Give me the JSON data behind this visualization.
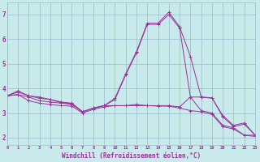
{
  "xlabel": "Windchill (Refroidissement éolien,°C)",
  "background_color": "#c8eaea",
  "grid_color": "#99bbcc",
  "line_color": "#993399",
  "x_values": [
    0,
    1,
    2,
    3,
    4,
    5,
    6,
    7,
    8,
    9,
    10,
    11,
    12,
    13,
    14,
    15,
    16,
    17,
    18,
    19,
    20,
    21,
    22,
    23
  ],
  "series": [
    [
      3.7,
      3.9,
      3.7,
      3.6,
      3.55,
      3.45,
      3.4,
      3.05,
      3.2,
      3.3,
      3.6,
      4.6,
      5.5,
      6.65,
      6.65,
      7.1,
      6.5,
      5.3,
      3.65,
      3.6,
      2.9,
      2.5,
      2.6,
      2.1
    ],
    [
      3.7,
      3.85,
      3.7,
      3.65,
      3.55,
      3.42,
      3.38,
      3.05,
      3.2,
      3.3,
      3.55,
      4.55,
      5.45,
      6.6,
      6.6,
      7.0,
      6.45,
      3.65,
      3.65,
      3.62,
      2.85,
      2.45,
      2.55,
      2.1
    ],
    [
      3.7,
      3.75,
      3.65,
      3.5,
      3.45,
      3.4,
      3.35,
      3.05,
      3.2,
      3.3,
      3.3,
      3.3,
      3.35,
      3.3,
      3.3,
      3.3,
      3.25,
      3.65,
      3.1,
      3.0,
      2.5,
      2.4,
      2.1,
      2.1
    ],
    [
      3.7,
      3.75,
      3.5,
      3.4,
      3.35,
      3.3,
      3.28,
      3.0,
      3.15,
      3.25,
      3.3,
      3.3,
      3.3,
      3.3,
      3.28,
      3.28,
      3.2,
      3.1,
      3.05,
      2.95,
      2.45,
      2.35,
      2.1,
      2.05
    ]
  ],
  "ylim": [
    1.7,
    7.5
  ],
  "xlim": [
    0,
    23
  ],
  "yticks": [
    2,
    3,
    4,
    5,
    6,
    7
  ],
  "xticks": [
    0,
    1,
    2,
    3,
    4,
    5,
    6,
    7,
    8,
    9,
    10,
    11,
    12,
    13,
    14,
    15,
    16,
    17,
    18,
    19,
    20,
    21,
    22,
    23
  ],
  "xtick_labels": [
    "0",
    "1",
    "2",
    "3",
    "4",
    "5",
    "6",
    "7",
    "8",
    "9",
    "10",
    "11",
    "12",
    "13",
    "14",
    "15",
    "16",
    "17",
    "18",
    "19",
    "20",
    "21",
    "22",
    "23"
  ]
}
